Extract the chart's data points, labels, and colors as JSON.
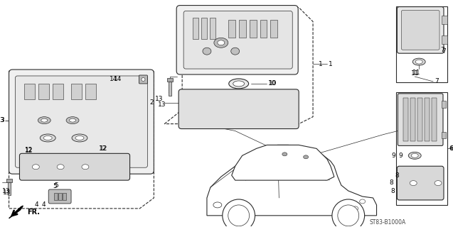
{
  "bg_color": "#ffffff",
  "diagram_code": "ST83-B1000A",
  "lc": "#2a2a2a",
  "lw": 0.8,
  "figsize": [
    6.37,
    3.2
  ],
  "dpi": 100
}
